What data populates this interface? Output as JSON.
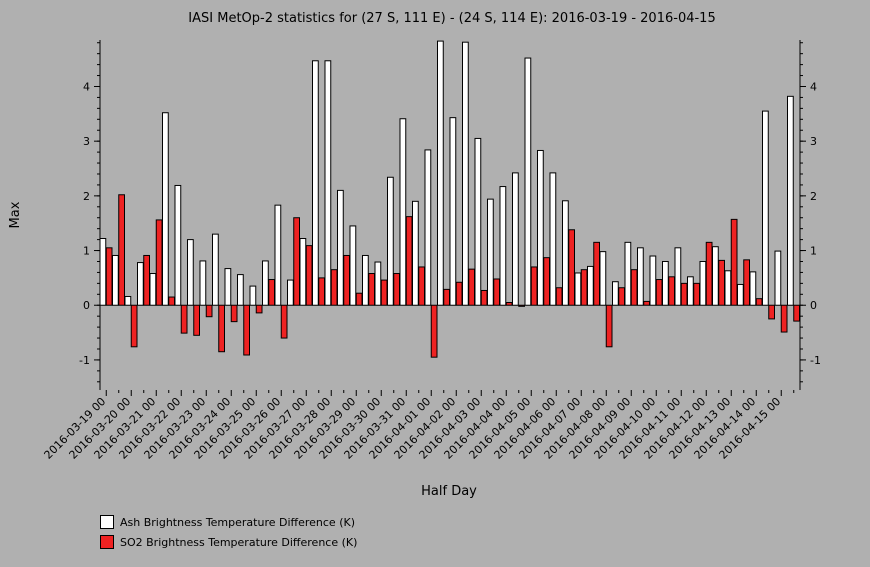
{
  "chart_data": {
    "type": "bar",
    "title": "IASI MetOp-2 statistics for (27 S, 111 E) - (24 S, 114 E): 2016-03-19 - 2016-04-15",
    "xlabel": "Half Day",
    "ylabel": "Max",
    "ylim": [
      -1.55,
      4.85
    ],
    "yticks": [
      -1,
      0,
      1,
      2,
      3,
      4
    ],
    "grid": false,
    "legend_position": "bottom-left",
    "tick_labels": [
      "2016-03-19 00",
      "2016-03-20 00",
      "2016-03-21 00",
      "2016-03-22 00",
      "2016-03-23 00",
      "2016-03-24 00",
      "2016-03-25 00",
      "2016-03-26 00",
      "2016-03-27 00",
      "2016-03-28 00",
      "2016-03-29 00",
      "2016-03-30 00",
      "2016-03-31 00",
      "2016-04-01 00",
      "2016-04-02 00",
      "2016-04-03 00",
      "2016-04-04 00",
      "2016-04-05 00",
      "2016-04-06 00",
      "2016-04-07 00",
      "2016-04-08 00",
      "2016-04-09 00",
      "2016-04-10 00",
      "2016-04-11 00",
      "2016-04-12 00",
      "2016-04-13 00",
      "2016-04-14 00",
      "2016-04-15 00"
    ],
    "series": [
      {
        "name": "Ash Brightness Temperature Difference (K)",
        "color": "#ffffff",
        "values": [
          1.22,
          0.91,
          0.16,
          0.78,
          0.58,
          3.52,
          2.19,
          1.2,
          0.81,
          1.3,
          0.67,
          0.56,
          0.35,
          0.81,
          1.83,
          0.46,
          1.22,
          4.47,
          4.47,
          2.1,
          1.45,
          0.91,
          0.79,
          2.34,
          3.41,
          1.9,
          2.84,
          4.83,
          3.43,
          4.81,
          3.05,
          1.94,
          2.17,
          2.42,
          4.52,
          2.83,
          2.42,
          1.91,
          0.59,
          0.71,
          0.98,
          0.43,
          1.15,
          1.05,
          0.9,
          0.8,
          1.05,
          0.52,
          0.8,
          1.07,
          0.63,
          0.38,
          0.61,
          3.55,
          0.99,
          3.82
        ]
      },
      {
        "name": "SO2 Brightness Temperature Difference (K)",
        "color": "#ee2222",
        "values": [
          1.05,
          2.02,
          -0.76,
          0.91,
          1.56,
          0.15,
          -0.51,
          -0.55,
          -0.21,
          -0.85,
          -0.3,
          -0.91,
          -0.14,
          0.47,
          -0.6,
          1.6,
          1.09,
          0.5,
          0.65,
          0.91,
          0.22,
          0.58,
          0.46,
          0.58,
          1.62,
          0.7,
          -0.95,
          0.29,
          0.42,
          0.66,
          0.27,
          0.48,
          0.05,
          -0.02,
          0.7,
          0.87,
          0.32,
          1.38,
          0.65,
          1.15,
          -0.76,
          0.32,
          0.65,
          0.07,
          0.47,
          0.52,
          0.4,
          0.4,
          1.15,
          0.82,
          1.57,
          0.83,
          0.12,
          -0.25,
          -0.49,
          -0.29
        ]
      }
    ]
  }
}
